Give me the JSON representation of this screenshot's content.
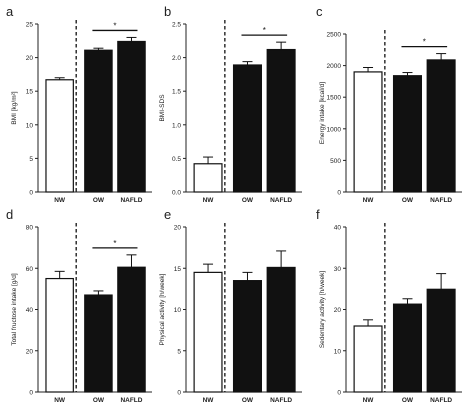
{
  "chart_data": [
    {
      "panel": "a",
      "type": "bar",
      "categories": [
        "NW",
        "OW",
        "NAFLD"
      ],
      "values": [
        16.7,
        21.1,
        22.4
      ],
      "errors": [
        0.3,
        0.3,
        0.6
      ],
      "fills": [
        "#ffffff",
        "#111111",
        "#111111"
      ],
      "ylabel": "BMI [kg/m²]",
      "ylim": [
        0,
        25
      ],
      "yticks": [
        "0",
        "5",
        "10",
        "15",
        "20",
        "25"
      ],
      "significance": [
        {
          "from": 1,
          "to": 2,
          "label": "*"
        }
      ]
    },
    {
      "panel": "b",
      "type": "bar",
      "categories": [
        "NW",
        "OW",
        "NAFLD"
      ],
      "values": [
        0.42,
        1.89,
        2.12
      ],
      "errors": [
        0.1,
        0.05,
        0.11
      ],
      "fills": [
        "#ffffff",
        "#111111",
        "#111111"
      ],
      "ylabel": "BMI-SDS",
      "ylim": [
        0,
        2.5
      ],
      "yticks": [
        "0.0",
        "0.5",
        "1.0",
        "1.5",
        "2.0",
        "2.5"
      ],
      "significance": [
        {
          "from": 1,
          "to": 2,
          "label": "*"
        }
      ]
    },
    {
      "panel": "c",
      "type": "bar",
      "categories": [
        "NW",
        "OW",
        "NAFLD"
      ],
      "values": [
        1900,
        1840,
        2090
      ],
      "errors": [
        70,
        50,
        100
      ],
      "fills": [
        "#ffffff",
        "#111111",
        "#111111"
      ],
      "ylabel": "Energy intake [kcal/d]",
      "ylim": [
        0,
        2500
      ],
      "yticks": [
        "0",
        "500",
        "1000",
        "1500",
        "2000",
        "2500"
      ],
      "significance": [
        {
          "from": 1,
          "to": 2,
          "label": "*"
        }
      ]
    },
    {
      "panel": "d",
      "type": "bar",
      "categories": [
        "NW",
        "OW",
        "NAFLD"
      ],
      "values": [
        55,
        47,
        60.5
      ],
      "errors": [
        3.5,
        2,
        6
      ],
      "fills": [
        "#ffffff",
        "#111111",
        "#111111"
      ],
      "ylabel": "Total fructose intake [g/d]",
      "ylim": [
        0,
        80
      ],
      "yticks": [
        "0",
        "20",
        "40",
        "60",
        "80"
      ],
      "significance": [
        {
          "from": 1,
          "to": 2,
          "label": "*"
        }
      ]
    },
    {
      "panel": "e",
      "type": "bar",
      "categories": [
        "NW",
        "OW",
        "NAFLD"
      ],
      "values": [
        14.5,
        13.5,
        15.1
      ],
      "errors": [
        1.0,
        1.0,
        2.0
      ],
      "fills": [
        "#ffffff",
        "#111111",
        "#111111"
      ],
      "ylabel": "Physical activity [h/week]",
      "ylim": [
        0,
        20
      ],
      "yticks": [
        "0",
        "5",
        "10",
        "15",
        "20"
      ],
      "significance": []
    },
    {
      "panel": "f",
      "type": "bar",
      "categories": [
        "NW",
        "OW",
        "NAFLD"
      ],
      "values": [
        16,
        21.3,
        24.9
      ],
      "errors": [
        1.5,
        1.3,
        3.8
      ],
      "fills": [
        "#ffffff",
        "#111111",
        "#111111"
      ],
      "ylabel": "Sedentary activity [h/week]",
      "ylim": [
        0,
        40
      ],
      "yticks": [
        "0",
        "10",
        "20",
        "30",
        "40"
      ],
      "significance": []
    }
  ]
}
